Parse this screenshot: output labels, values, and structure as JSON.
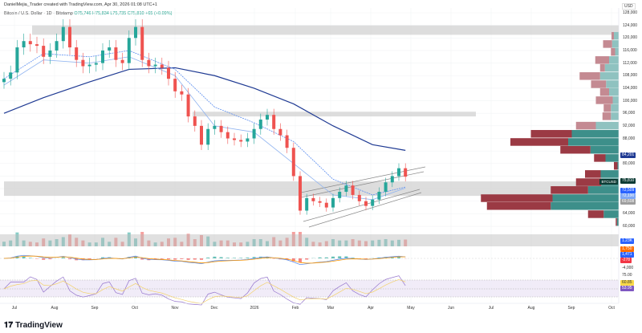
{
  "header": {
    "credit": "DanielMejia_Trader created with TradingView.com, Apr 30, 2026 01:08 UTC+1",
    "symbol_line": "Bitcoin / U.S. Dollar · 1D · Bitstamp",
    "ohlc": "O75,746 H75,834 L75,735 C75,810 +65 (+0.09%)",
    "currency": "USD"
  },
  "footer": {
    "brand": "TradingView"
  },
  "chart_data": {
    "type": "candlestick",
    "title": "Bitcoin / U.S. Dollar · 1D · Bitstamp",
    "ylim": [
      58000,
      130000
    ],
    "y_ticks": [
      "128,000",
      "124,000",
      "120,000",
      "116,000",
      "112,000",
      "108,000",
      "104,000",
      "100,000",
      "96,000",
      "92,000",
      "88,000",
      "80,000",
      "64,000",
      "60,000"
    ],
    "x_ticks": [
      "Jul",
      "Aug",
      "Sep",
      "Oct",
      "Nov",
      "Dec",
      "2026",
      "Feb",
      "Mar",
      "Apr",
      "May",
      "Jun",
      "Jul",
      "Aug",
      "Sep",
      "Oct"
    ],
    "period": [
      "2025-07-01",
      "2026-04-30"
    ],
    "closes": [
      107000,
      109000,
      117000,
      119000,
      118000,
      117500,
      114000,
      116000,
      119000,
      123500,
      117000,
      113000,
      111000,
      111500,
      112000,
      116000,
      117000,
      113000,
      112000,
      120000,
      123500,
      113000,
      111000,
      111500,
      110500,
      107000,
      103000,
      102000,
      95000,
      92000,
      86000,
      91000,
      92000,
      90000,
      88000,
      87500,
      87000,
      88000,
      91000,
      94000,
      95500,
      91000,
      89000,
      85000,
      76000,
      65000,
      69000,
      68000,
      67500,
      66000,
      69000,
      71000,
      73000,
      70000,
      68000,
      66500,
      68500,
      71000,
      74000,
      76000,
      78500,
      75810
    ],
    "moving_averages": [
      {
        "color": "#1f3a93",
        "values": [
          96000,
          101000,
          106000,
          110000,
          110500,
          108000,
          104000,
          99000,
          92000,
          86000,
          84201
        ],
        "label": "84,201"
      },
      {
        "color": "#5b8def",
        "values": [
          107000,
          115000,
          114000,
          116000,
          110000,
          98000,
          93000,
          87000,
          75000,
          70000,
          72509
        ],
        "label": "72,509"
      },
      {
        "color": "#90b4f0",
        "values": [
          105000,
          113000,
          112000,
          114000,
          108000,
          92000,
          90000,
          80000,
          70000,
          68500,
          72190
        ],
        "label": "72,190"
      }
    ],
    "zones": [
      {
        "from": 121000,
        "to": 124000
      },
      {
        "from": 95000,
        "to": 96500
      },
      {
        "from": 69700,
        "to": 74300
      }
    ],
    "volume_profile": [
      {
        "price": 120600,
        "down": 4,
        "up": 8
      },
      {
        "price": 118000,
        "down": 15,
        "up": 11
      },
      {
        "price": 115500,
        "down": 7,
        "up": 6
      },
      {
        "price": 112900,
        "down": 23,
        "up": 16
      },
      {
        "price": 110400,
        "down": 8,
        "up": 23
      },
      {
        "price": 107800,
        "down": 34,
        "up": 31
      },
      {
        "price": 105200,
        "down": 25,
        "up": 21
      },
      {
        "price": 102700,
        "down": 15,
        "up": 16
      },
      {
        "price": 100100,
        "down": 28,
        "up": 10
      },
      {
        "price": 97600,
        "down": 12,
        "up": 13
      },
      {
        "price": 95000,
        "down": 14,
        "up": 13
      },
      {
        "price": 92000,
        "down": 33,
        "up": 38
      },
      {
        "price": 89400,
        "down": 68,
        "up": 78
      },
      {
        "price": 86800,
        "down": 96,
        "up": 84
      },
      {
        "price": 84300,
        "down": 50,
        "up": 47
      },
      {
        "price": 81700,
        "down": 19,
        "up": 22
      },
      {
        "price": 79200,
        "down": 6,
        "up": 2
      },
      {
        "price": 76600,
        "down": 26,
        "up": 30
      },
      {
        "price": 74000,
        "down": 42,
        "up": 29
      },
      {
        "price": 71500,
        "down": 62,
        "up": 51
      },
      {
        "price": 68900,
        "down": 119,
        "up": 110
      },
      {
        "price": 66400,
        "down": 106,
        "up": 113
      },
      {
        "price": 63800,
        "down": 26,
        "up": 25
      },
      {
        "price": 61300,
        "down": 2,
        "up": 3
      }
    ],
    "last_price": {
      "symbol": "BTCUSD",
      "value": "75,810"
    },
    "ma_level_69608": "69,608",
    "volume_pane": {
      "label": "1.23K"
    },
    "macd_pane": {
      "labels": [
        "1,750",
        "1,471",
        "-278"
      ],
      "tick": "-4,000"
    },
    "rsi_pane": {
      "labels": [
        "60.85",
        "53.95"
      ],
      "tick": "75.00"
    },
    "colors": {
      "up": "#26a69a",
      "down": "#ef5350",
      "profile_up": "#3d8f8a",
      "profile_down": "#9b3a44"
    }
  }
}
